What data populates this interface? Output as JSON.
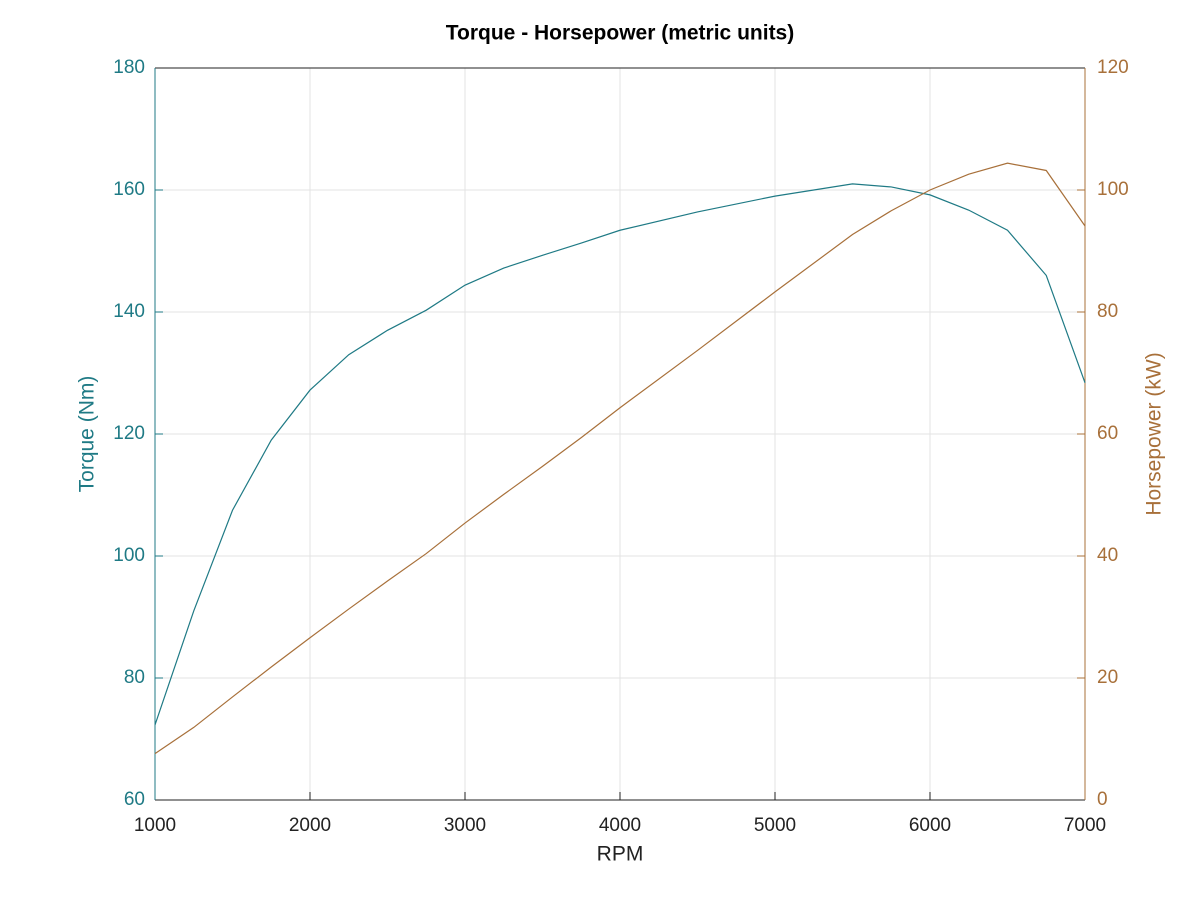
{
  "chart_data": {
    "type": "line",
    "title": "Torque - Horsepower (metric units)",
    "x_label": "RPM",
    "y_label": "Torque (Nm)",
    "y2_label": "Horsepower (kW)",
    "x": [
      1000,
      1250,
      1500,
      1750,
      2000,
      2250,
      2500,
      2750,
      3000,
      3250,
      3500,
      3750,
      4000,
      4500,
      5000,
      5500,
      5750,
      6000,
      6250,
      6500,
      6750,
      7000
    ],
    "series": [
      {
        "name": "Torque",
        "color": "#1f7a85",
        "axis": "y",
        "values": [
          72.3,
          91,
          107.5,
          119,
          127.2,
          133,
          137,
          140.3,
          144.4,
          147.2,
          149.3,
          151.3,
          153.4,
          156.4,
          159,
          161,
          160.5,
          159.2,
          156.7,
          153.4,
          146,
          128.4
        ]
      },
      {
        "name": "Horsepower",
        "color": "#a8703a",
        "axis": "y2",
        "values": [
          7.6,
          11.9,
          16.9,
          21.8,
          26.6,
          31.3,
          35.9,
          40.4,
          45.4,
          50.1,
          54.7,
          59.4,
          64.3,
          73.7,
          83.3,
          92.7,
          96.6,
          100.0,
          102.6,
          104.4,
          103.2,
          94.1
        ]
      }
    ],
    "xlim": [
      1000,
      7000
    ],
    "xticks": [
      1000,
      2000,
      3000,
      4000,
      5000,
      6000,
      7000
    ],
    "ylim": [
      60,
      180
    ],
    "yticks": [
      60,
      80,
      100,
      120,
      140,
      160,
      180
    ],
    "y2lim": [
      0,
      120
    ],
    "y2ticks": [
      0,
      20,
      40,
      60,
      80,
      100,
      120
    ],
    "grid": true
  }
}
